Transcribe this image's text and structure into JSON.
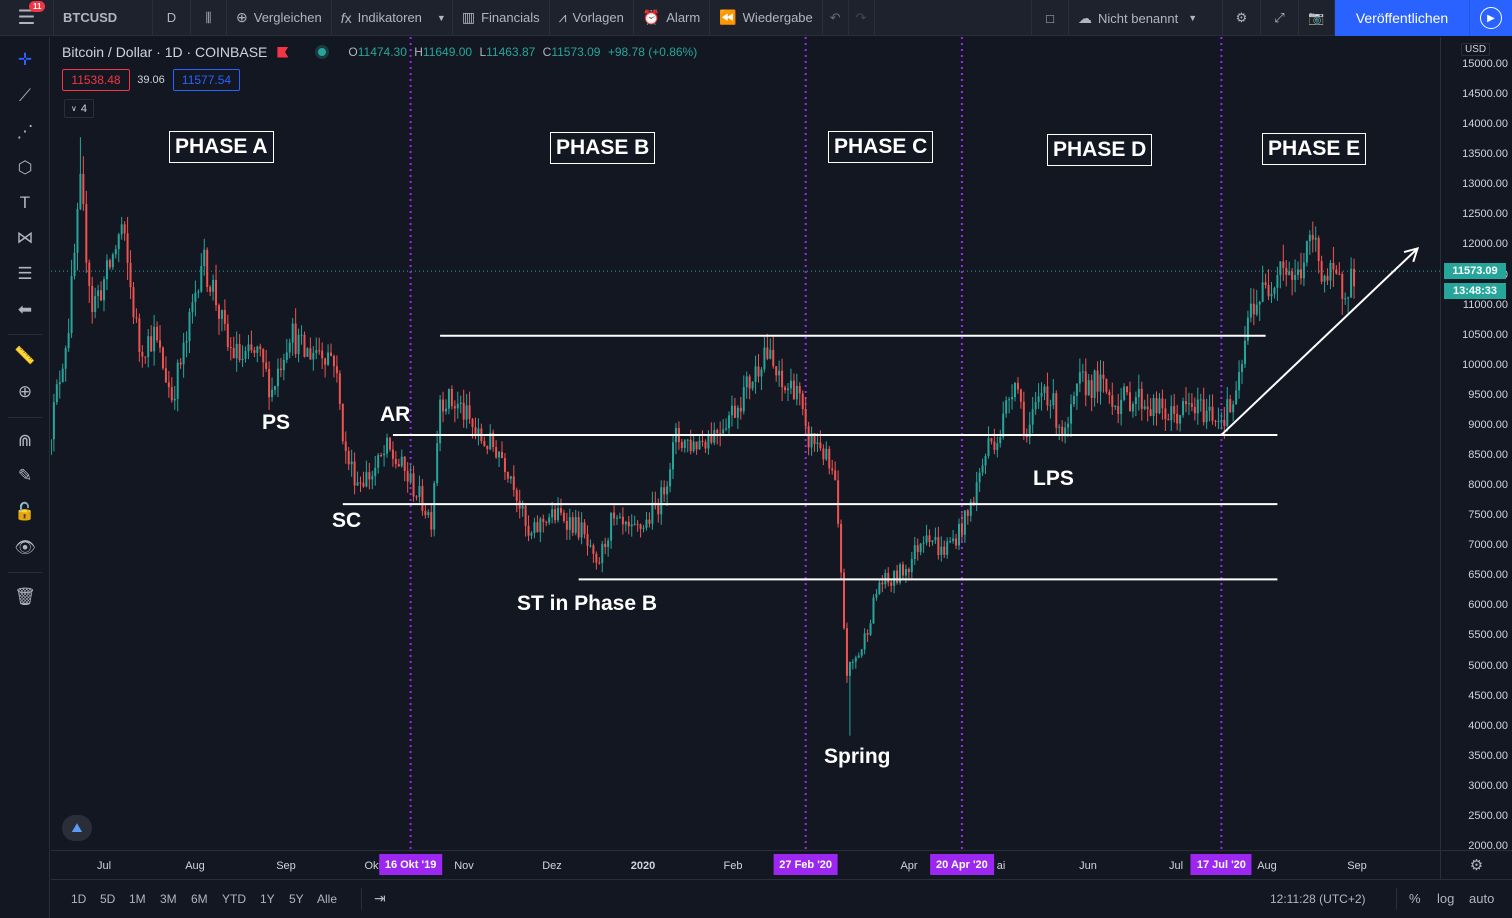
{
  "topbar": {
    "notification_count": "11",
    "symbol": "BTCUSD",
    "interval": "D",
    "compare": "Vergleichen",
    "indicators": "Indikatoren",
    "financials": "Financials",
    "templates": "Vorlagen",
    "alert": "Alarm",
    "replay": "Wiedergabe",
    "layout_name": "Nicht benannt",
    "publish": "Veröffentlichen"
  },
  "legend": {
    "title": "Bitcoin / Dollar · 1D · COINBASE",
    "open_label": "O",
    "open": "11474.30",
    "high_label": "H",
    "high": "11649.00",
    "low_label": "L",
    "low": "11463.87",
    "close_label": "C",
    "close": "11573.09",
    "change": "+98.78 (+0.86%)",
    "bid": "11538.48",
    "spread": "39.06",
    "ask": "11577.54",
    "collapsed_count": "4"
  },
  "annotations": {
    "phases": [
      "PHASE A",
      "PHASE B",
      "PHASE C",
      "PHASE D",
      "PHASE E"
    ],
    "ps": "PS",
    "ar": "AR",
    "sc": "SC",
    "st": "ST in Phase B",
    "spring": "Spring",
    "lps": "LPS"
  },
  "price_axis": {
    "currency": "USD",
    "ticks": [
      "15000.00",
      "14500.00",
      "14000.00",
      "13500.00",
      "13000.00",
      "12500.00",
      "12000.00",
      "11500.00",
      "11000.00",
      "10500.00",
      "10000.00",
      "9500.00",
      "9000.00",
      "8500.00",
      "8000.00",
      "7500.00",
      "7000.00",
      "6500.00",
      "6000.00",
      "5500.00",
      "5000.00",
      "4500.00",
      "4000.00",
      "3500.00",
      "3000.00",
      "2500.00",
      "2000.00"
    ],
    "last_price": "11573.09",
    "countdown": "13:48:33"
  },
  "time_axis": {
    "ticks": [
      "Jul",
      "Aug",
      "Sep",
      "Okt",
      "Nov",
      "Dez",
      "2020",
      "Feb",
      "Apr",
      "ai",
      "Jun",
      "Jul",
      "Aug",
      "Sep"
    ],
    "markers": [
      "16 Okt '19",
      "27 Feb '20",
      "20 Apr '20",
      "17 Jul '20"
    ]
  },
  "bottombar": {
    "ranges": [
      "1D",
      "5D",
      "1M",
      "3M",
      "6M",
      "YTD",
      "1Y",
      "5Y",
      "Alle"
    ],
    "clock": "12:11:28 (UTC+2)",
    "percent": "%",
    "log": "log",
    "auto": "auto"
  },
  "colors": {
    "background": "#131722",
    "up": "#26a69a",
    "down": "#ef5350",
    "marker": "#9c27f0",
    "accent": "#2962ff",
    "levels": "#ffffff"
  },
  "chart_data": {
    "type": "candlestick",
    "symbol": "BTCUSD",
    "exchange": "COINBASE",
    "interval": "1D",
    "ylim": [
      2000,
      15500
    ],
    "x_range": [
      "2019-06-15",
      "2020-09-10"
    ],
    "horizontal_levels": [
      10500,
      8850,
      7700,
      6450
    ],
    "event_dates": [
      "2019-10-16",
      "2020-02-27",
      "2020-04-20",
      "2020-07-17"
    ],
    "labeled_points": [
      {
        "label": "PS",
        "date": "2019-08-28",
        "price": 9500
      },
      {
        "label": "SC",
        "date": "2019-09-26",
        "price": 7700
      },
      {
        "label": "AR",
        "date": "2019-10-10",
        "price": 8800
      },
      {
        "label": "ST in Phase B",
        "date": "2019-12-17",
        "price": 6450
      },
      {
        "label": "Spring",
        "date": "2020-03-13",
        "price": 3850
      },
      {
        "label": "LPS",
        "date": "2020-05-25",
        "price": 8600
      }
    ],
    "trend_arrow": {
      "from": {
        "date": "2020-07-17",
        "price": 8850
      },
      "to": {
        "date": "2020-09-10",
        "price": 11950
      }
    },
    "close_path": [
      [
        "2019-06-15",
        8700
      ],
      [
        "2019-06-22",
        10700
      ],
      [
        "2019-06-26",
        12900
      ],
      [
        "2019-06-30",
        11000
      ],
      [
        "2019-07-05",
        11500
      ],
      [
        "2019-07-10",
        12300
      ],
      [
        "2019-07-16",
        10300
      ],
      [
        "2019-07-21",
        10500
      ],
      [
        "2019-07-27",
        9500
      ],
      [
        "2019-08-01",
        10400
      ],
      [
        "2019-08-06",
        11800
      ],
      [
        "2019-08-10",
        11300
      ],
      [
        "2019-08-15",
        10300
      ],
      [
        "2019-08-20",
        10100
      ],
      [
        "2019-08-25",
        10200
      ],
      [
        "2019-08-30",
        9600
      ],
      [
        "2019-09-05",
        10600
      ],
      [
        "2019-09-10",
        10200
      ],
      [
        "2019-09-15",
        10300
      ],
      [
        "2019-09-20",
        10150
      ],
      [
        "2019-09-24",
        8500
      ],
      [
        "2019-09-28",
        8100
      ],
      [
        "2019-10-03",
        8200
      ],
      [
        "2019-10-08",
        8600
      ],
      [
        "2019-10-13",
        8300
      ],
      [
        "2019-10-18",
        7900
      ],
      [
        "2019-10-23",
        7450
      ],
      [
        "2019-10-26",
        9500
      ],
      [
        "2019-11-02",
        9300
      ],
      [
        "2019-11-08",
        8800
      ],
      [
        "2019-11-15",
        8600
      ],
      [
        "2019-11-20",
        8100
      ],
      [
        "2019-11-25",
        7100
      ],
      [
        "2019-12-01",
        7500
      ],
      [
        "2019-12-07",
        7500
      ],
      [
        "2019-12-13",
        7250
      ],
      [
        "2019-12-18",
        6600
      ],
      [
        "2019-12-23",
        7400
      ],
      [
        "2019-12-30",
        7200
      ],
      [
        "2020-01-04",
        7400
      ],
      [
        "2020-01-09",
        7800
      ],
      [
        "2020-01-14",
        8800
      ],
      [
        "2020-01-20",
        8700
      ],
      [
        "2020-01-27",
        8900
      ],
      [
        "2020-02-03",
        9300
      ],
      [
        "2020-02-10",
        9900
      ],
      [
        "2020-02-13",
        10300
      ],
      [
        "2020-02-19",
        9600
      ],
      [
        "2020-02-24",
        9700
      ],
      [
        "2020-02-27",
        8800
      ],
      [
        "2020-03-03",
        8700
      ],
      [
        "2020-03-08",
        8000
      ],
      [
        "2020-03-12",
        4900
      ],
      [
        "2020-03-17",
        5300
      ],
      [
        "2020-03-23",
        6400
      ],
      [
        "2020-03-27",
        6400
      ],
      [
        "2020-04-02",
        6700
      ],
      [
        "2020-04-08",
        7300
      ],
      [
        "2020-04-13",
        6900
      ],
      [
        "2020-04-17",
        7100
      ],
      [
        "2020-04-22",
        7500
      ],
      [
        "2020-04-29",
        8700
      ],
      [
        "2020-05-03",
        8900
      ],
      [
        "2020-05-08",
        9900
      ],
      [
        "2020-05-12",
        8800
      ],
      [
        "2020-05-18",
        9700
      ],
      [
        "2020-05-25",
        8800
      ],
      [
        "2020-05-30",
        9700
      ],
      [
        "2020-06-05",
        9700
      ],
      [
        "2020-06-12",
        9400
      ],
      [
        "2020-06-18",
        9500
      ],
      [
        "2020-06-24",
        9300
      ],
      [
        "2020-06-30",
        9150
      ],
      [
        "2020-07-06",
        9300
      ],
      [
        "2020-07-12",
        9250
      ],
      [
        "2020-07-17",
        9150
      ],
      [
        "2020-07-22",
        9400
      ],
      [
        "2020-07-27",
        11000
      ],
      [
        "2020-08-02",
        11300
      ],
      [
        "2020-08-06",
        11800
      ],
      [
        "2020-08-11",
        11400
      ],
      [
        "2020-08-17",
        12100
      ],
      [
        "2020-08-21",
        11500
      ],
      [
        "2020-08-27",
        11300
      ],
      [
        "2020-09-01",
        11600
      ]
    ]
  }
}
